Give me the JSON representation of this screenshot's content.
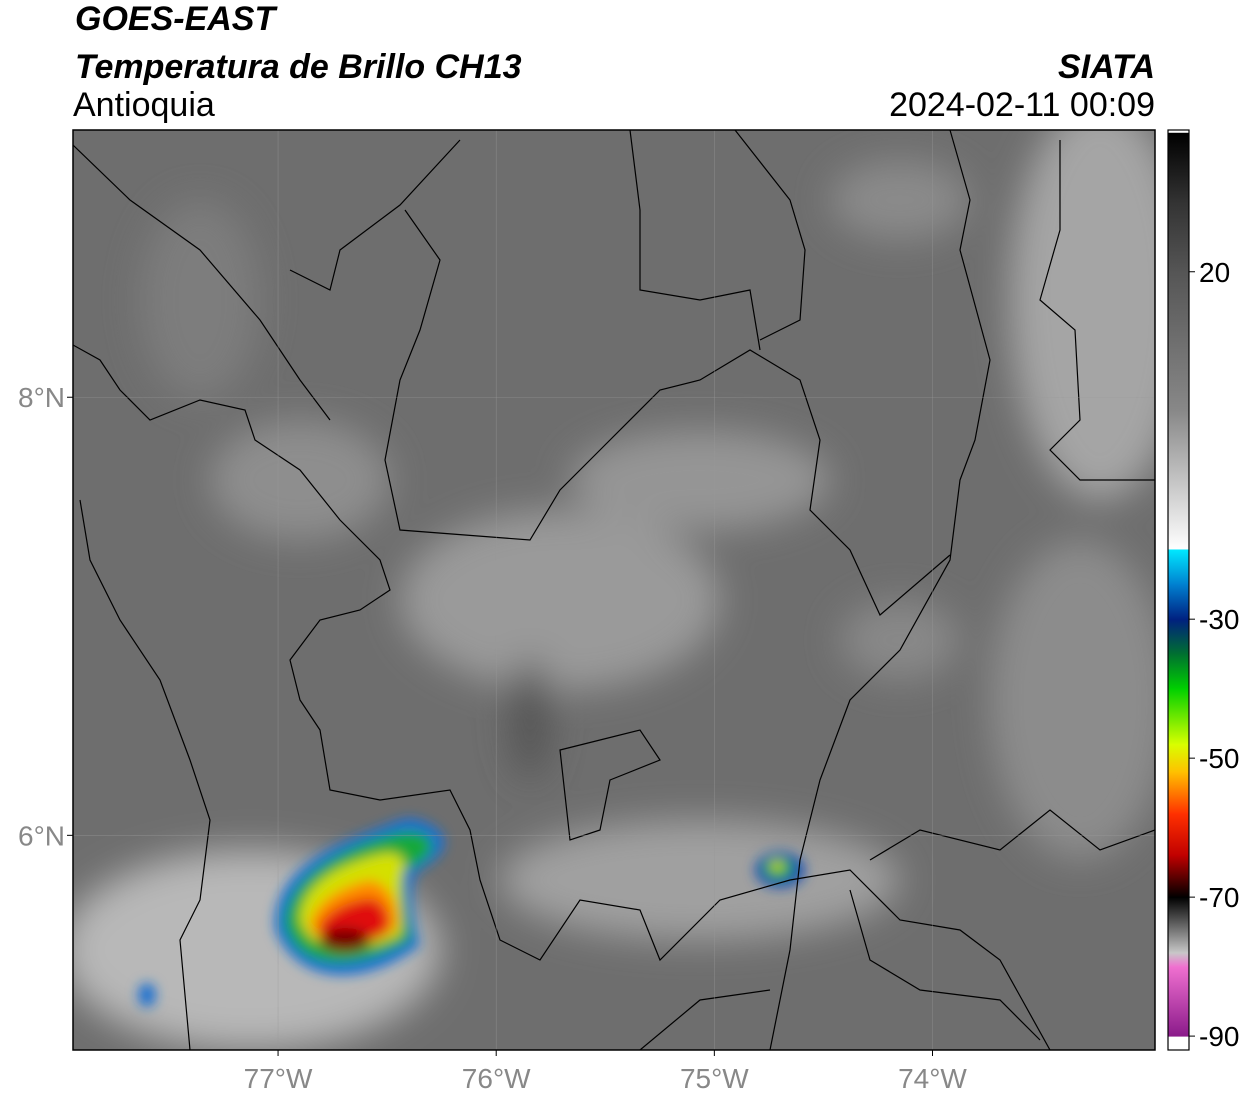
{
  "header": {
    "title": "GOES-EAST",
    "subtitle": "Temperatura de Brillo CH13",
    "source": "SIATA",
    "region": "Antioquia",
    "datetime": "2024-02-11 00:09"
  },
  "map": {
    "lon_range": [
      -77.94,
      -72.98
    ],
    "lat_range": [
      5.02,
      9.22
    ],
    "lon_ticks": [
      {
        "value": -77,
        "label": "77°W"
      },
      {
        "value": -76,
        "label": "76°W"
      },
      {
        "value": -75,
        "label": "75°W"
      },
      {
        "value": -74,
        "label": "74°W"
      }
    ],
    "lat_ticks": [
      {
        "value": 8,
        "label": "8°N"
      },
      {
        "value": 6,
        "label": "6°N"
      }
    ]
  },
  "colorbar": {
    "clim": [
      -92,
      40.4
    ],
    "ticks": [
      20,
      -30,
      -50,
      -70,
      -90
    ]
  }
}
